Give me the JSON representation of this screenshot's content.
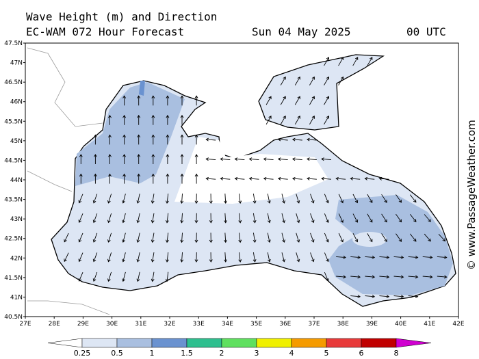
{
  "header": {
    "title": "Wave Height (m) and Direction",
    "model": "EC-WAM 072 Hour Forecast",
    "date": "Sun 04 May 2025",
    "time": "00 UTC"
  },
  "credit": "© www.PassageWeather.com",
  "map": {
    "lat_labels": [
      "47.5N",
      "47N",
      "46.5N",
      "46N",
      "45.5N",
      "45N",
      "44.5N",
      "44N",
      "43.5N",
      "43N",
      "42.5N",
      "42N",
      "41.5N",
      "41N",
      "40.5N"
    ],
    "lon_labels": [
      "27E",
      "28E",
      "29E",
      "30E",
      "31E",
      "32E",
      "33E",
      "34E",
      "35E",
      "36E",
      "37E",
      "38E",
      "39E",
      "40E",
      "41E",
      "42E"
    ]
  },
  "legend": {
    "colors": [
      "#ffffff",
      "#dde6f4",
      "#a9bfe0",
      "#6a92d0",
      "#2ebf8f",
      "#5fe05f",
      "#f0f000",
      "#f59b00",
      "#e83a3a",
      "#c00000",
      "#d000d0"
    ],
    "labels": [
      "0.25",
      "0.5",
      "1",
      "1.5",
      "2",
      "3",
      "4",
      "5",
      "6",
      "8"
    ]
  }
}
